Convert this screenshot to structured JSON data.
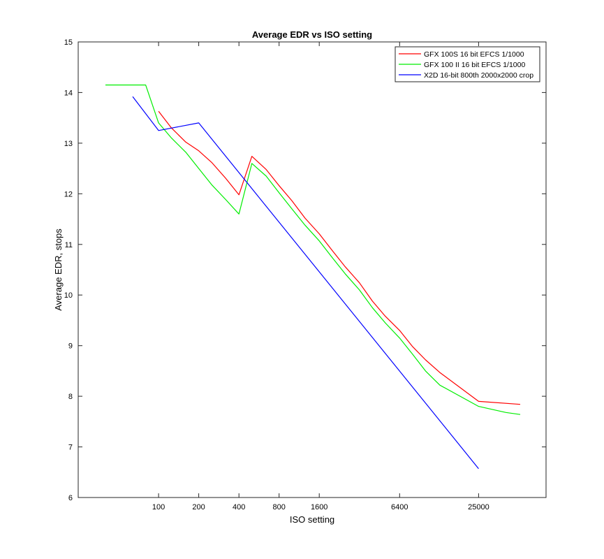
{
  "chart_data": {
    "type": "line",
    "title": "Average EDR vs ISO setting",
    "xlabel": "ISO setting",
    "ylabel": "Average EDR, stops",
    "x_scale": "log",
    "xlim": [
      25,
      80000
    ],
    "ylim": [
      6,
      15
    ],
    "x_ticks": [
      100,
      200,
      400,
      800,
      1600,
      6400,
      25000
    ],
    "x_tick_labels": [
      "100",
      "200",
      "400",
      "800",
      "1600",
      "6400",
      "25000"
    ],
    "y_ticks": [
      6,
      7,
      8,
      9,
      10,
      11,
      12,
      13,
      14,
      15
    ],
    "y_tick_labels": [
      "6",
      "7",
      "8",
      "9",
      "10",
      "11",
      "12",
      "13",
      "14",
      "15"
    ],
    "grid": false,
    "legend_position": "top-right",
    "series": [
      {
        "name": "GFX 100S 16 bit EFCS 1/1000",
        "color": "#ff0000",
        "points": [
          [
            100,
            13.63
          ],
          [
            125,
            13.3
          ],
          [
            160,
            13.02
          ],
          [
            200,
            12.85
          ],
          [
            250,
            12.62
          ],
          [
            320,
            12.3
          ],
          [
            400,
            11.98
          ],
          [
            500,
            12.74
          ],
          [
            640,
            12.48
          ],
          [
            800,
            12.16
          ],
          [
            1000,
            11.86
          ],
          [
            1250,
            11.52
          ],
          [
            1600,
            11.21
          ],
          [
            2000,
            10.88
          ],
          [
            2500,
            10.56
          ],
          [
            3200,
            10.24
          ],
          [
            4000,
            9.88
          ],
          [
            5000,
            9.58
          ],
          [
            6400,
            9.3
          ],
          [
            8000,
            8.98
          ],
          [
            10000,
            8.72
          ],
          [
            12800,
            8.47
          ],
          [
            25000,
            7.9
          ],
          [
            51200,
            7.84
          ]
        ]
      },
      {
        "name": "GFX 100 II 16 bit EFCS 1/1000",
        "color": "#00ee00",
        "points": [
          [
            40,
            14.15
          ],
          [
            80,
            14.15
          ],
          [
            100,
            13.4
          ],
          [
            125,
            13.1
          ],
          [
            160,
            12.82
          ],
          [
            200,
            12.5
          ],
          [
            250,
            12.18
          ],
          [
            320,
            11.88
          ],
          [
            400,
            11.6
          ],
          [
            500,
            12.6
          ],
          [
            640,
            12.35
          ],
          [
            800,
            12.02
          ],
          [
            1000,
            11.7
          ],
          [
            1250,
            11.38
          ],
          [
            1600,
            11.07
          ],
          [
            2000,
            10.74
          ],
          [
            2500,
            10.42
          ],
          [
            3200,
            10.1
          ],
          [
            4000,
            9.75
          ],
          [
            5000,
            9.45
          ],
          [
            6400,
            9.15
          ],
          [
            8000,
            8.83
          ],
          [
            10000,
            8.5
          ],
          [
            12800,
            8.22
          ],
          [
            25000,
            7.8
          ],
          [
            40000,
            7.68
          ],
          [
            51200,
            7.64
          ]
        ]
      },
      {
        "name": "X2D 16-bit 800th 2000x2000 crop",
        "color": "#0000ff",
        "points": [
          [
            64,
            13.92
          ],
          [
            100,
            13.25
          ],
          [
            200,
            13.4
          ],
          [
            25000,
            6.57
          ]
        ]
      }
    ]
  }
}
